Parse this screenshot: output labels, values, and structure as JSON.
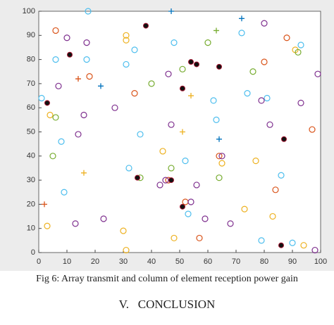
{
  "chart_data": {
    "type": "scatter",
    "xlim": [
      0,
      100
    ],
    "ylim": [
      0,
      100
    ],
    "xticks": [
      0,
      10,
      20,
      30,
      40,
      50,
      60,
      70,
      80,
      90,
      100
    ],
    "yticks": [
      0,
      10,
      20,
      30,
      40,
      50,
      60,
      70,
      80,
      90,
      100
    ],
    "series": [
      {
        "color": "#4dbeee",
        "marker": "o",
        "x": [
          17.5,
          6,
          17,
          34,
          31,
          48,
          72,
          93,
          1,
          8,
          36,
          52,
          62,
          63,
          74,
          81,
          9,
          32,
          53,
          86,
          90,
          79
        ],
        "y": [
          100,
          80,
          80,
          84,
          78,
          87,
          91,
          86,
          64,
          46,
          49,
          38,
          63,
          55,
          66,
          64,
          25,
          35,
          16,
          32,
          4,
          5
        ]
      },
      {
        "color": "#d95319",
        "marker": "o",
        "x": [
          6,
          18,
          34,
          97,
          88,
          57,
          46,
          80,
          64,
          84,
          52
        ],
        "y": [
          92,
          73,
          66,
          51,
          89,
          6,
          30,
          79,
          40,
          26,
          21
        ]
      },
      {
        "color": "#edb120",
        "marker": "o",
        "x": [
          31,
          31,
          4,
          44,
          65,
          77,
          91,
          83,
          31,
          3,
          30,
          48,
          94,
          73
        ],
        "y": [
          90,
          88,
          57,
          42,
          37,
          38,
          84,
          15,
          1,
          11,
          9,
          6,
          3,
          18
        ]
      },
      {
        "color": "#7e2f8e",
        "marker": "o",
        "x": [
          10,
          17,
          7,
          16,
          14,
          27,
          46,
          47,
          59,
          68,
          79,
          82,
          93,
          99,
          65,
          56,
          13,
          23,
          45,
          54,
          80,
          43,
          98
        ],
        "y": [
          89,
          87,
          69,
          57,
          49,
          60,
          74,
          53,
          14,
          12,
          63,
          53,
          62,
          74,
          40,
          28,
          12,
          14,
          30,
          21,
          95,
          28,
          1
        ]
      },
      {
        "color": "#77ac30",
        "marker": "o",
        "x": [
          5,
          51,
          6,
          60,
          92,
          76,
          64,
          47,
          40,
          36
        ],
        "y": [
          40,
          76,
          56,
          87,
          83,
          75,
          31,
          35,
          70,
          31
        ]
      },
      {
        "color": "#111111",
        "marker": "*",
        "x": [
          11,
          38,
          54,
          56,
          64,
          51,
          3,
          87,
          35,
          47,
          51,
          86
        ],
        "y": [
          82,
          94,
          79,
          78,
          77,
          68,
          62,
          47,
          31,
          30,
          19,
          3
        ]
      },
      {
        "color": "#0072bd",
        "marker": "+",
        "x": [
          47,
          72,
          22,
          64
        ],
        "y": [
          100,
          97,
          69,
          47
        ]
      },
      {
        "color": "#edb120",
        "marker": "+",
        "x": [
          54,
          51,
          16
        ],
        "y": [
          65,
          50,
          33
        ]
      },
      {
        "color": "#d95319",
        "marker": "+",
        "x": [
          14,
          2
        ],
        "y": [
          72,
          20
        ]
      },
      {
        "color": "#77ac30",
        "marker": "+",
        "x": [
          63
        ],
        "y": [
          92
        ]
      }
    ]
  },
  "caption": "Fig 6: Array transmit and column of element reception power gain",
  "heading": "V.   CONCLUSION"
}
